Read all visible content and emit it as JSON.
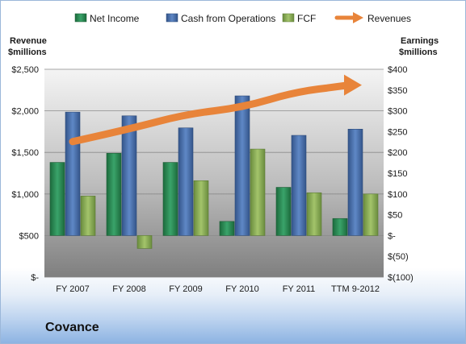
{
  "company": "Covance",
  "colors": {
    "net_income": "#2e8b57",
    "cash_from_operations": "#4a72b0",
    "fcf": "#8db05a",
    "revenues": "#e8843a"
  },
  "chart_data": {
    "type": "bar",
    "categories": [
      "FY 2007",
      "FY 2008",
      "FY 2009",
      "FY 2010",
      "FY 2011",
      "TTM 9-2012"
    ],
    "series": [
      {
        "name": "Net Income",
        "axis": "right",
        "values": [
          176,
          198,
          176,
          34,
          116,
          41
        ]
      },
      {
        "name": "Cash from Operations",
        "axis": "right",
        "values": [
          297,
          288,
          259,
          336,
          241,
          256
        ]
      },
      {
        "name": "FCF",
        "axis": "right",
        "values": [
          95,
          -31,
          132,
          208,
          103,
          100
        ]
      },
      {
        "name": "Revenues",
        "axis": "left",
        "type": "line",
        "values": [
          1630,
          1780,
          1960,
          2040,
          2240,
          2310
        ]
      }
    ],
    "left_axis": {
      "title_line1": "Revenue",
      "title_line2": "$millions",
      "ylim": [
        0,
        2500
      ],
      "ticks": [
        {
          "value": 0,
          "label": "$-"
        },
        {
          "value": 500,
          "label": "$500"
        },
        {
          "value": 1000,
          "label": "$1,000"
        },
        {
          "value": 1500,
          "label": "$1,500"
        },
        {
          "value": 2000,
          "label": "$2,000"
        },
        {
          "value": 2500,
          "label": "$2,500"
        }
      ]
    },
    "right_axis": {
      "title_line1": "Earnings",
      "title_line2": "$millions",
      "ylim": [
        -100,
        400
      ],
      "ticks": [
        {
          "value": -100,
          "label": "$(100)"
        },
        {
          "value": -50,
          "label": "$(50)"
        },
        {
          "value": 0,
          "label": "$-"
        },
        {
          "value": 50,
          "label": "$50"
        },
        {
          "value": 100,
          "label": "$100"
        },
        {
          "value": 150,
          "label": "$150"
        },
        {
          "value": 200,
          "label": "$200"
        },
        {
          "value": 250,
          "label": "$250"
        },
        {
          "value": 300,
          "label": "$300"
        },
        {
          "value": 350,
          "label": "$350"
        },
        {
          "value": 400,
          "label": "$400"
        }
      ]
    },
    "grid": true,
    "legend": "top"
  }
}
